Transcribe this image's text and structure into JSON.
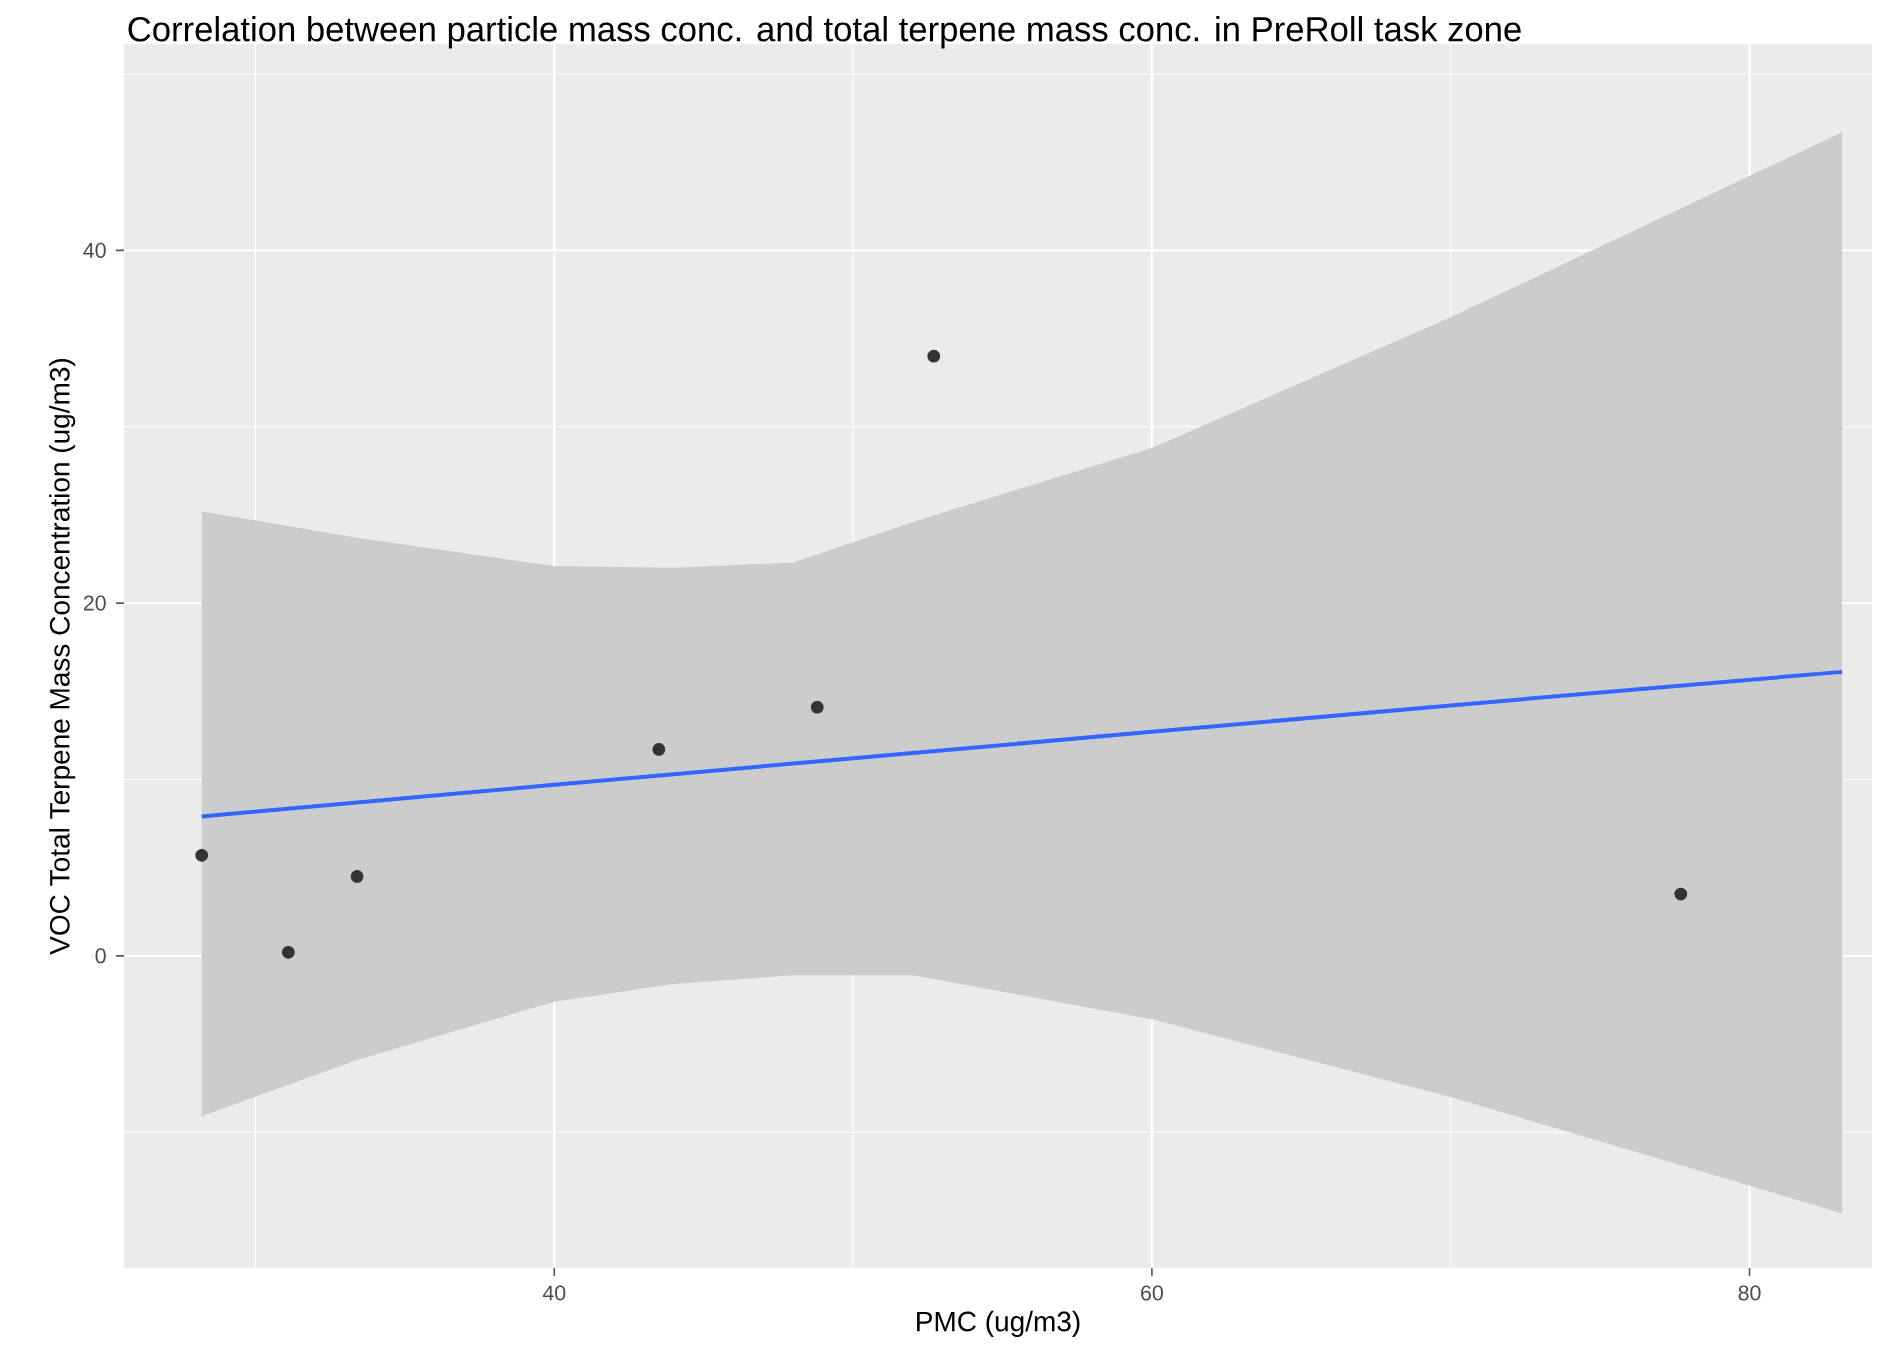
{
  "chart_data": {
    "type": "scatter",
    "title": "Correlation between particle mass conc. and total terpene mass conc. in PreRoll task zone",
    "xlabel": "PMC (ug/m3)",
    "ylabel": "VOC Total Terpene Mass Concentration (ug/m3)",
    "xlim": [
      25.6,
      84.1
    ],
    "ylim": [
      -17.7,
      51.7
    ],
    "xticks": [
      40,
      60,
      80
    ],
    "yticks": [
      0,
      20,
      40
    ],
    "grid": true,
    "series": [
      {
        "type": "line",
        "marker": "none",
        "color": "#3366ff",
        "x": [
          28.2,
          33.4,
          40,
          44,
          48,
          52,
          60,
          70,
          83.1
        ],
        "values": [
          7.9,
          8.7,
          9.7,
          10.3,
          10.9,
          11.5,
          12.7,
          14.2,
          16.1
        ],
        "lower": [
          -9.1,
          -5.9,
          -2.6,
          -1.6,
          -1.1,
          -1.1,
          -3.6,
          -8.0,
          -14.6
        ],
        "upper": [
          25.2,
          23.7,
          22.1,
          22.0,
          22.3,
          24.6,
          28.8,
          36.2,
          46.7
        ]
      },
      {
        "marker": "circle",
        "color": "#333333",
        "x": [
          28.2,
          31.1,
          33.4,
          43.5,
          48.8,
          52.7,
          77.7
        ],
        "values": [
          5.7,
          0.2,
          4.5,
          11.7,
          14.1,
          34.0,
          3.5
        ]
      }
    ]
  }
}
